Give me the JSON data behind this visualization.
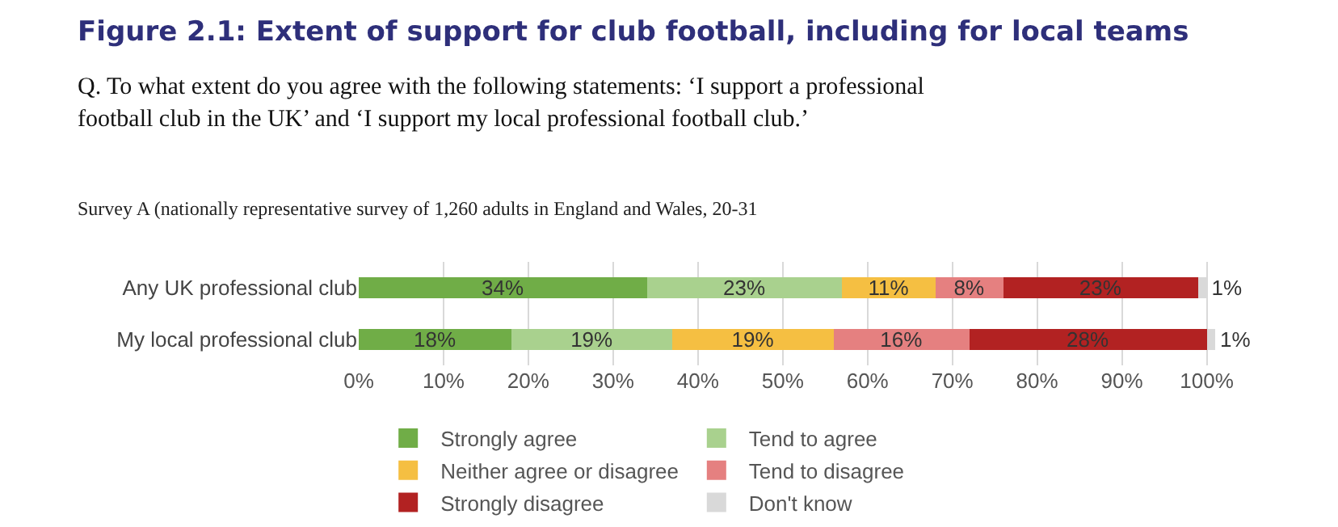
{
  "chart_data": {
    "type": "bar",
    "orientation": "horizontal",
    "stacked": true,
    "title": "Figure 2.1: Extent of support for club football, including for local teams",
    "subtitle": "Q. To what extent do you agree with the following statements: ‘I support a professional football club in the UK’ and ‘I support my local professional football club.’",
    "annotations": [
      "Survey A (nationally representative survey of 1,260 adults in England and Wales, 20-31"
    ],
    "categories": [
      "Any UK professional club",
      "My local professional club"
    ],
    "series": [
      {
        "name": "Strongly agree",
        "color": "#70ad47",
        "values": [
          34,
          18
        ],
        "value_labels": [
          "34%",
          "18%"
        ]
      },
      {
        "name": "Tend to agree",
        "color": "#a9d18e",
        "values": [
          23,
          19
        ],
        "value_labels": [
          "23%",
          "19%"
        ]
      },
      {
        "name": "Neither agree or disagree",
        "color": "#f5bf42",
        "values": [
          11,
          19
        ],
        "value_labels": [
          "11%",
          "19%"
        ]
      },
      {
        "name": "Tend to disagree",
        "color": "#e58080",
        "values": [
          8,
          16
        ],
        "value_labels": [
          "8%",
          "16%"
        ]
      },
      {
        "name": "Strongly disagree",
        "color": "#b22222",
        "values": [
          23,
          28
        ],
        "value_labels": [
          "23%",
          "28%"
        ]
      },
      {
        "name": "Don't know",
        "color": "#d9d9d9",
        "values": [
          1,
          1
        ],
        "value_labels": [
          "1%",
          "1%"
        ]
      }
    ],
    "xlim": [
      0,
      101
    ],
    "xticks": [
      {
        "value": 0,
        "label": "0%"
      },
      {
        "value": 10,
        "label": "10%"
      },
      {
        "value": 20,
        "label": "20%"
      },
      {
        "value": 30,
        "label": "30%"
      },
      {
        "value": 40,
        "label": "40%"
      },
      {
        "value": 50,
        "label": "50%"
      },
      {
        "value": 60,
        "label": "60%"
      },
      {
        "value": 70,
        "label": "70%"
      },
      {
        "value": 80,
        "label": "80%"
      },
      {
        "value": 90,
        "label": "90%"
      },
      {
        "value": 100,
        "label": "100%"
      }
    ],
    "grid": "x",
    "legend": "bottom"
  }
}
